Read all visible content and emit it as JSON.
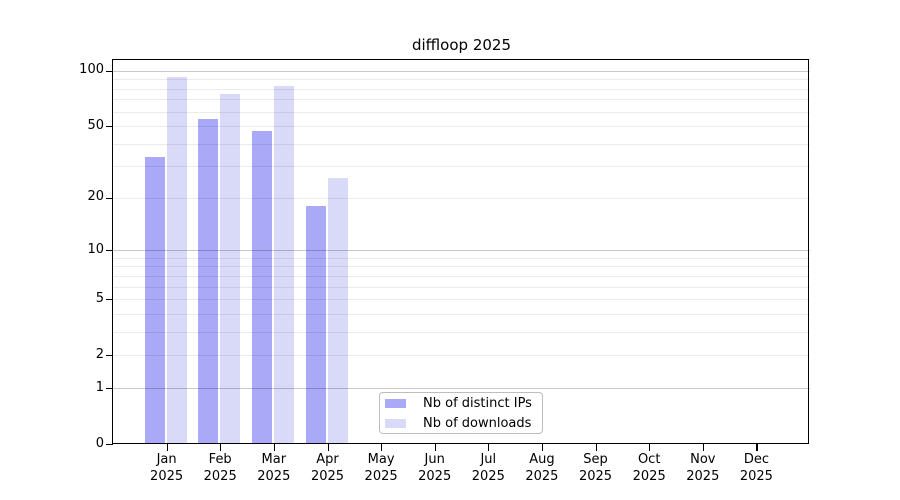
{
  "chart_data": {
    "type": "bar",
    "title": "diffloop 2025",
    "categories": [
      {
        "month": "Jan",
        "year": "2025"
      },
      {
        "month": "Feb",
        "year": "2025"
      },
      {
        "month": "Mar",
        "year": "2025"
      },
      {
        "month": "Apr",
        "year": "2025"
      },
      {
        "month": "May",
        "year": "2025"
      },
      {
        "month": "Jun",
        "year": "2025"
      },
      {
        "month": "Jul",
        "year": "2025"
      },
      {
        "month": "Aug",
        "year": "2025"
      },
      {
        "month": "Sep",
        "year": "2025"
      },
      {
        "month": "Oct",
        "year": "2025"
      },
      {
        "month": "Nov",
        "year": "2025"
      },
      {
        "month": "Dec",
        "year": "2025"
      }
    ],
    "series": [
      {
        "name": "Nb of distinct IPs",
        "color": "#a9a9f8",
        "values": [
          34,
          55,
          47,
          18,
          null,
          null,
          null,
          null,
          null,
          null,
          null,
          null
        ]
      },
      {
        "name": "Nb of downloads",
        "color": "#d9d9f8",
        "values": [
          93,
          75,
          83,
          26,
          null,
          null,
          null,
          null,
          null,
          null,
          null,
          null
        ]
      }
    ],
    "y_ticks": [
      0,
      1,
      2,
      5,
      10,
      20,
      50,
      100
    ],
    "y_major_gridlines": [
      1,
      10,
      100
    ],
    "y_minor_gridlines": [
      2,
      3,
      4,
      5,
      6,
      7,
      8,
      9,
      20,
      30,
      40,
      50,
      60,
      70,
      80,
      90
    ],
    "scale": "log1p",
    "ylim": [
      0,
      116
    ],
    "grid": "horizontal",
    "legend_position": "inside-bottom-center",
    "xlabel": "",
    "ylabel": ""
  },
  "colors": {
    "major_grid": "rgba(0,0,0,0.21)",
    "minor_grid": "rgba(0,0,0,0.08)",
    "axis": "#000000",
    "background": "#ffffff",
    "legend_border": "#bdbdbd"
  }
}
